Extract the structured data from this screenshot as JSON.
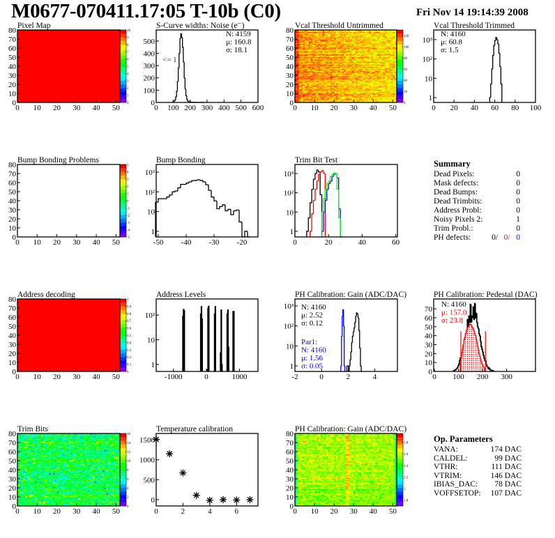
{
  "header": {
    "title": "M0677-070411.17:05 T-10b (C0)",
    "date": "Fri Nov 14 19:14:39 2008"
  },
  "summary": {
    "title": "Summary",
    "items": [
      {
        "label": "Dead Pixels:",
        "value": "0"
      },
      {
        "label": "Mask defects:",
        "value": "0"
      },
      {
        "label": "Dead Bumps:",
        "value": "0"
      },
      {
        "label": "Dead Trimbits:",
        "value": "0"
      },
      {
        "label": "Address Probl:",
        "value": "0"
      },
      {
        "label": "Noisy Pixels 2:",
        "value": "1"
      },
      {
        "label": "Trim Probl.:",
        "value": "0"
      }
    ],
    "ph_defects": {
      "label": "PH defects:",
      "values": [
        {
          "text": "0/",
          "color": "#000000"
        },
        {
          "text": "0/",
          "color": "#ff0000"
        },
        {
          "text": "0",
          "color": "#0000ff"
        }
      ]
    }
  },
  "op_parameters": {
    "title": "Op. Parameters",
    "items": [
      {
        "label": "VANA:",
        "value": "174 DAC"
      },
      {
        "label": "CALDEL:",
        "value": "99 DAC"
      },
      {
        "label": "VTHR:",
        "value": "111 DAC"
      },
      {
        "label": "VTRIM:",
        "value": "146 DAC"
      },
      {
        "label": "IBIAS_DAC:",
        "value": "78 DAC"
      },
      {
        "label": "VOFFSETOP:",
        "value": "107 DAC"
      }
    ]
  },
  "chart_data": [
    {
      "type": "heatmap",
      "title": "Pixel Map",
      "xlim": [
        0,
        52
      ],
      "ylim": [
        0,
        80
      ],
      "xticks": [
        0,
        10,
        20,
        30,
        40,
        50
      ],
      "yticks": [
        0,
        10,
        20,
        30,
        40,
        50,
        60,
        70,
        80
      ],
      "zlim": [
        0,
        10
      ],
      "zticks": [
        0,
        1,
        2,
        3,
        4,
        5,
        6,
        7,
        8,
        9,
        10
      ],
      "typical_value": 10,
      "spread": 0
    },
    {
      "type": "bar",
      "title": "S-Curve widths: Noise (e⁻)",
      "xlim": [
        0,
        600
      ],
      "ylim": [
        0,
        590
      ],
      "xticks": [
        0,
        100,
        200,
        300,
        400,
        500,
        600
      ],
      "yticks": [
        0,
        100,
        200,
        300,
        400,
        500
      ],
      "series": [
        {
          "color": "#000000",
          "x_start": 100,
          "bin_width": 5,
          "values": [
            5,
            10,
            20,
            45,
            90,
            170,
            280,
            400,
            520,
            560,
            530,
            450,
            330,
            200,
            110,
            55,
            25,
            12,
            8,
            5,
            4,
            3,
            2,
            2,
            1,
            1,
            0,
            1,
            1,
            0,
            0,
            0,
            0,
            0,
            0,
            1
          ]
        }
      ],
      "stats": [
        {
          "text": "N: 4159",
          "color": "#000000"
        },
        {
          "text": "μ: 160.8",
          "color": "#000000"
        },
        {
          "text": "σ: 18.1",
          "color": "#000000"
        }
      ],
      "annotation": "<= 1"
    },
    {
      "type": "heatmap",
      "title": "Vcal Threshold Untrimmed",
      "xlim": [
        0,
        52
      ],
      "ylim": [
        0,
        80
      ],
      "xticks": [
        0,
        10,
        20,
        30,
        40,
        50
      ],
      "yticks": [
        0,
        10,
        20,
        30,
        40,
        50,
        60,
        70,
        80
      ],
      "zlim": [
        0,
        130
      ],
      "zticks": [
        0,
        20,
        40,
        60,
        80,
        100,
        120
      ],
      "typical_value": 102,
      "spread": 5
    },
    {
      "type": "bar",
      "title": "Vcal Threshold Trimmed",
      "log_y": true,
      "xlim": [
        0,
        100
      ],
      "ylim": [
        0.56,
        3160
      ],
      "xticks": [
        0,
        20,
        40,
        60,
        80,
        100
      ],
      "yticks": [
        1,
        10,
        100,
        1000
      ],
      "ytick_labels": [
        "1",
        "10",
        "10²",
        "10³"
      ],
      "series": [
        {
          "color": "#000000",
          "x_start": 55,
          "bin_width": 1,
          "values": [
            1,
            5,
            30,
            150,
            500,
            900,
            1300,
            1000,
            600,
            200,
            40,
            5
          ]
        }
      ],
      "stats": [
        {
          "text": "N: 4160",
          "color": "#000000"
        },
        {
          "text": "μ: 60.8",
          "color": "#000000"
        },
        {
          "text": "σ:  1.5",
          "color": "#000000"
        }
      ]
    },
    {
      "type": "heatmap",
      "title": "Bump Bonding Problems",
      "xlim": [
        0,
        52
      ],
      "ylim": [
        0,
        80
      ],
      "xticks": [
        0,
        10,
        20,
        30,
        40,
        50
      ],
      "yticks": [
        0,
        10,
        20,
        30,
        40,
        50,
        60,
        70,
        80
      ],
      "zlim": [
        -5,
        5
      ],
      "zticks": [
        -5,
        -4,
        -3,
        -2,
        -1,
        0,
        1,
        2,
        3,
        4,
        5
      ],
      "typical_value": null,
      "spread": 0
    },
    {
      "type": "bar",
      "title": "Bump Bonding",
      "log_y": true,
      "xlim": [
        -50.75,
        -14.25
      ],
      "ylim": [
        0.52,
        2450
      ],
      "xticks": [
        -50,
        -40,
        -30,
        -20
      ],
      "yticks": [
        1,
        10,
        100,
        1000
      ],
      "ytick_labels": [
        "1",
        "10",
        "10²",
        "10³"
      ],
      "series": [
        {
          "color": "#000000",
          "x_start": -51,
          "bin_width": 1,
          "values": [
            30,
            45,
            45,
            45,
            55,
            70,
            100,
            110,
            160,
            240,
            240,
            280,
            320,
            370,
            380,
            410,
            380,
            320,
            230,
            120,
            55,
            35,
            14,
            18,
            22,
            11,
            13,
            7,
            11,
            12,
            3,
            0,
            1,
            0
          ]
        }
      ]
    },
    {
      "type": "bar",
      "title": "Trim Bit Test",
      "log_y": true,
      "xlim": [
        0,
        61
      ],
      "ylim": [
        0.51,
        2950
      ],
      "xticks": [
        0,
        20,
        40,
        60
      ],
      "yticks": [
        1,
        10,
        100,
        1000
      ],
      "ytick_labels": [
        "1",
        "10",
        "10²",
        "10³"
      ],
      "series": [
        {
          "color": "#000000",
          "x_start": 7,
          "bin_width": 1,
          "values": [
            1,
            5,
            30,
            150,
            500,
            1000,
            1500,
            1200,
            80,
            0
          ]
        },
        {
          "color": "#ff0000",
          "x_start": 9,
          "bin_width": 1,
          "values": [
            1,
            8,
            40,
            150,
            400,
            900,
            1200,
            1400,
            1000,
            0
          ]
        },
        {
          "color": "#0000ff",
          "x_start": 16,
          "bin_width": 1,
          "values": [
            1,
            10,
            40,
            150,
            300,
            400,
            700,
            900,
            1000,
            600,
            15,
            0
          ]
        },
        {
          "color": "#00ff00",
          "x_start": 16,
          "bin_width": 1,
          "values": [
            10,
            50,
            150,
            300,
            400,
            700,
            900,
            1100,
            1000,
            150,
            5,
            0
          ]
        }
      ]
    },
    {
      "type": "heatmap",
      "title": "Address decoding",
      "xlim": [
        0,
        52
      ],
      "ylim": [
        0,
        80
      ],
      "xticks": [
        0,
        10,
        20,
        30,
        40,
        50
      ],
      "yticks": [
        0,
        10,
        20,
        30,
        40,
        50,
        60,
        70,
        80
      ],
      "zlim": [
        0,
        1
      ],
      "zticks": [
        0,
        0.1,
        0.2,
        0.3,
        0.4,
        0.5,
        0.6,
        0.7,
        0.8,
        0.9,
        1
      ],
      "typical_value": 1,
      "spread": 0
    },
    {
      "type": "bar",
      "title": "Address Levels",
      "log_y": true,
      "xlim": [
        -1520,
        1560
      ],
      "ylim": [
        0.52,
        447
      ],
      "xticks": [
        -1000,
        0,
        1000
      ],
      "yticks": [
        1,
        10,
        100
      ],
      "ytick_labels": [
        "1",
        "10",
        "10²"
      ],
      "series": [
        {
          "color": "#000000",
          "bin_width": 20,
          "bins": [
            [
              -720,
              90
            ],
            [
              -700,
              170
            ],
            [
              -680,
              150
            ],
            [
              -180,
              110
            ],
            [
              -160,
              220
            ],
            [
              -140,
              70
            ],
            [
              20,
              0.6
            ],
            [
              40,
              190
            ],
            [
              60,
              230
            ],
            [
              240,
              110
            ],
            [
              260,
              220
            ],
            [
              420,
              3
            ],
            [
              440,
              160
            ],
            [
              460,
              1
            ],
            [
              620,
              110
            ],
            [
              640,
              160
            ],
            [
              660,
              5
            ],
            [
              800,
              140
            ],
            [
              820,
              140
            ]
          ]
        }
      ]
    },
    {
      "type": "bar",
      "title": "PH Calibration: Gain (ADC/DAC)",
      "log_y": true,
      "xlim": [
        -2,
        5.7
      ],
      "ylim": [
        0.53,
        2230
      ],
      "xticks": [
        -2,
        0,
        2,
        4
      ],
      "yticks": [
        1,
        10,
        100,
        1000
      ],
      "ytick_labels": [
        "1",
        "10",
        "10²",
        "10³"
      ],
      "series": [
        {
          "color": "#000000",
          "x_start": 1.9,
          "bin_width": 0.06,
          "values": [
            1,
            1,
            0,
            1,
            2,
            5,
            15,
            30,
            50,
            80,
            150,
            300,
            450,
            400,
            250,
            60,
            8,
            1,
            0
          ]
        },
        {
          "color": "#0000ff",
          "x_start": 1.45,
          "bin_width": 0.05,
          "values": [
            1,
            30,
            300,
            650,
            100,
            1,
            0
          ]
        }
      ],
      "stats": [
        {
          "text": "N: 4160",
          "color": "#000000"
        },
        {
          "text": "μ: 2.52",
          "color": "#000000"
        },
        {
          "text": "σ: 0.12",
          "color": "#000000"
        }
      ],
      "stats2": [
        {
          "text": "Par1:",
          "color": "#0000ff"
        },
        {
          "text": "N: 4160",
          "color": "#0000ff"
        },
        {
          "text": "μ: 1.56",
          "color": "#0000ff"
        },
        {
          "text": "σ: 0.05",
          "color": "#0000ff"
        }
      ]
    },
    {
      "type": "bar",
      "title": "PH Calibration: Pedestal (DAC)",
      "xlim": [
        -3,
        420
      ],
      "ylim": [
        0,
        81
      ],
      "xticks": [
        0,
        100,
        200,
        300
      ],
      "yticks": [
        0,
        10,
        20,
        30,
        40,
        50,
        60,
        70
      ],
      "series": [
        {
          "color": "#000000",
          "x_start": 80,
          "bin_width": 3,
          "values": [
            1,
            1,
            2,
            2,
            3,
            4,
            6,
            8,
            12,
            15,
            14,
            20,
            22,
            28,
            30,
            36,
            38,
            42,
            45,
            58,
            50,
            62,
            55,
            75,
            55,
            62,
            60,
            72,
            58,
            76,
            60,
            65,
            55,
            50,
            48,
            42,
            40,
            34,
            28,
            25,
            22,
            18,
            15,
            12,
            12,
            8,
            6,
            5,
            3,
            4,
            2,
            2,
            1,
            1,
            1
          ]
        },
        {
          "color": "#ff0000",
          "filled": true,
          "x_start": 107,
          "bin_width": 3,
          "values": [
            10,
            15,
            20,
            25,
            30,
            35,
            38,
            42,
            45,
            47,
            49,
            50,
            52,
            52,
            53,
            52,
            50,
            49,
            47,
            45,
            42,
            40,
            36,
            32,
            28,
            24,
            20,
            17,
            14,
            11,
            9,
            7,
            5,
            4
          ]
        }
      ],
      "marker_lines": {
        "color": "#ff0000",
        "x": [
          110,
          212
        ],
        "height": 45
      },
      "stats": [
        {
          "text": "N: 4160",
          "color": "#000000"
        },
        {
          "text": "μ: 157.0",
          "color": "#ff0000"
        },
        {
          "text": "σ: 23.8",
          "color": "#ff0000"
        }
      ]
    },
    {
      "type": "heatmap",
      "title": "Trim Bits",
      "xlim": [
        0,
        52
      ],
      "ylim": [
        0,
        80
      ],
      "xticks": [
        0,
        10,
        20,
        30,
        40,
        50
      ],
      "yticks": [
        0,
        10,
        20,
        30,
        40,
        50,
        60,
        70,
        80
      ],
      "zlim": [
        0,
        16
      ],
      "zticks": [
        0,
        2,
        4,
        6,
        8,
        10,
        12,
        14,
        16
      ],
      "typical_value": 8,
      "spread": 1.4
    },
    {
      "type": "scatter",
      "title": "Temperature calibration",
      "xlim": [
        0,
        7.6
      ],
      "ylim": [
        -157,
        1657
      ],
      "xticks": [
        0,
        2,
        4,
        6
      ],
      "yticks": [
        0,
        500,
        1000,
        1500
      ],
      "x": [
        0,
        1,
        2,
        3,
        4,
        5,
        6,
        7
      ],
      "y": [
        1510,
        1150,
        670,
        110,
        -15,
        0,
        -10,
        0
      ]
    },
    {
      "type": "heatmap",
      "title": "PH Calibration: Gain (ADC/DAC)",
      "xlim": [
        0,
        52
      ],
      "ylim": [
        0,
        80
      ],
      "xticks": [
        0,
        10,
        20,
        30,
        40,
        50
      ],
      "yticks": [
        0,
        10,
        20,
        30,
        40,
        50,
        60,
        70,
        80
      ],
      "zlim": [
        1.7,
        2.95
      ],
      "zticks": [
        1.8,
        2,
        2.2,
        2.4,
        2.6,
        2.8
      ],
      "typical_value": 2.55,
      "spread": 0.06
    }
  ]
}
